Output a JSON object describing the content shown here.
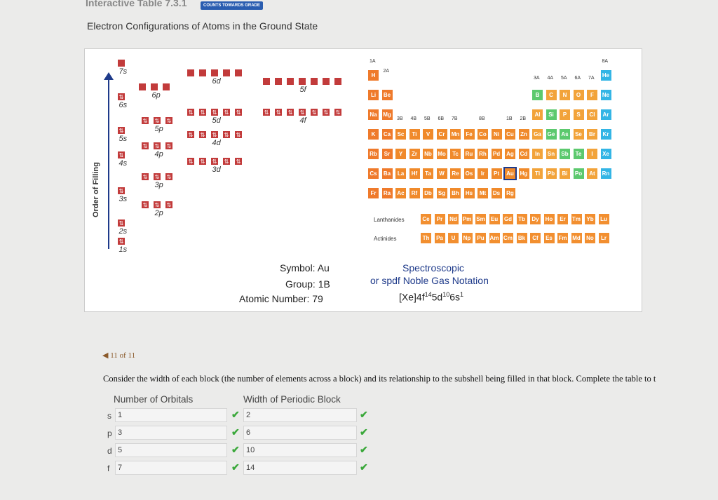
{
  "header": {
    "title": "Interactive Table 7.3.1",
    "badge": "COUNTS TOWARDS GRADE",
    "subtitle": "Electron Configurations of Atoms in the Ground State"
  },
  "diagram": {
    "y_label": "Order of Filling",
    "subshells": [
      "7s",
      "6p",
      "6d",
      "5f",
      "6s",
      "5d",
      "4f",
      "5s",
      "5p",
      "4d",
      "4s",
      "4p",
      "3d",
      "3s",
      "3p",
      "2s",
      "2p",
      "1s"
    ]
  },
  "periodic_table": {
    "group_labels": [
      "1A",
      "2A",
      "3A",
      "4A",
      "5A",
      "6A",
      "7A",
      "8A",
      "3B",
      "4B",
      "5B",
      "6B",
      "7B",
      "8B",
      "1B",
      "2B"
    ],
    "rows": [
      [
        "H",
        "He"
      ],
      [
        "Li",
        "Be",
        "B",
        "C",
        "N",
        "O",
        "F",
        "Ne"
      ],
      [
        "Na",
        "Mg",
        "Al",
        "Si",
        "P",
        "S",
        "Cl",
        "Ar"
      ],
      [
        "K",
        "Ca",
        "Sc",
        "Ti",
        "V",
        "Cr",
        "Mn",
        "Fe",
        "Co",
        "Ni",
        "Cu",
        "Zn",
        "Ga",
        "Ge",
        "As",
        "Se",
        "Br",
        "Kr"
      ],
      [
        "Rb",
        "Sr",
        "Y",
        "Zr",
        "Nb",
        "Mo",
        "Tc",
        "Ru",
        "Rh",
        "Pd",
        "Ag",
        "Cd",
        "In",
        "Sn",
        "Sb",
        "Te",
        "I",
        "Xe"
      ],
      [
        "Cs",
        "Ba",
        "La",
        "Hf",
        "Ta",
        "W",
        "Re",
        "Os",
        "Ir",
        "Pt",
        "Au",
        "Hg",
        "Tl",
        "Pb",
        "Bi",
        "Po",
        "At",
        "Rn"
      ],
      [
        "Fr",
        "Ra",
        "Ac",
        "Rf",
        "Db",
        "Sg",
        "Bh",
        "Hs",
        "Mt",
        "Ds",
        "Rg"
      ]
    ],
    "lanthanides_label": "Lanthanides",
    "lanthanides": [
      "Ce",
      "Pr",
      "Nd",
      "Pm",
      "Sm",
      "Eu",
      "Gd",
      "Tb",
      "Dy",
      "Ho",
      "Er",
      "Tm",
      "Yb",
      "Lu"
    ],
    "actinides_label": "Actinides",
    "actinides": [
      "Th",
      "Pa",
      "U",
      "Np",
      "Pu",
      "Am",
      "Cm",
      "Bk",
      "Cf",
      "Es",
      "Fm",
      "Md",
      "No",
      "Lr"
    ],
    "selected": "Au"
  },
  "info": {
    "symbol_label": "Symbol:",
    "symbol": "Au",
    "group_label": "Group:",
    "group": "1B",
    "atomic_label": "Atomic Number:",
    "atomic_number": "79",
    "notation_title_1": "Spectroscopic",
    "notation_title_2": "or spdf Noble Gas Notation",
    "notation": "[Xe]4f¹⁴4⁵d¹⁰6s¹"
  },
  "nav": {
    "pager": "11 of 11"
  },
  "question": {
    "text": "Consider the width of each block (the number of elements across a block) and its relationship to the subshell being filled in that block. Complete the table to t",
    "col1": "Number of Orbitals",
    "col2": "Width of Periodic Block",
    "rows": [
      {
        "label": "s",
        "orbitals": "1",
        "width": "2"
      },
      {
        "label": "p",
        "orbitals": "3",
        "width": "6"
      },
      {
        "label": "d",
        "orbitals": "5",
        "width": "10"
      },
      {
        "label": "f",
        "orbitals": "7",
        "width": "14"
      }
    ]
  },
  "colors": {
    "s_block": "#ef7a2b",
    "p_block": "#f2a33a",
    "noble": "#33b5e5",
    "metalloid": "#5cc96e",
    "orbital": "#c23b3b",
    "check": "#3aa83a"
  }
}
